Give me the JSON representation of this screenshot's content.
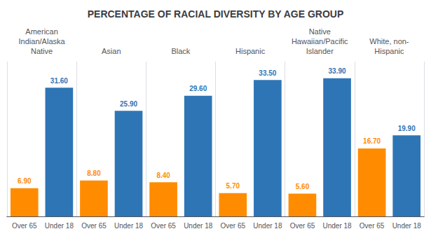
{
  "chart_data": {
    "type": "bar",
    "title": "PERCENTAGE OF RACIAL DIVERSITY BY AGE GROUP",
    "categories": [
      "American\nIndian/Alaska\nNative",
      "Asian",
      "Black",
      "Hispanic",
      "Native\nHawaiian/Pacific\nIslander",
      "White, non-\nHispanic"
    ],
    "series": [
      {
        "name": "Over 65",
        "color": "#FF8C00",
        "values": [
          6.9,
          8.8,
          8.4,
          5.7,
          5.6,
          16.7
        ],
        "value_labels": [
          "6.90",
          "8.80",
          "8.40",
          "5.70",
          "5.60",
          "16.70"
        ]
      },
      {
        "name": "Under 18",
        "color": "#2E75B6",
        "values": [
          31.6,
          25.9,
          29.6,
          33.5,
          33.9,
          19.9
        ],
        "value_labels": [
          "31.60",
          "25.90",
          "29.60",
          "33.50",
          "33.90",
          "19.90"
        ]
      }
    ],
    "ylim": [
      0,
      38
    ],
    "tick_labels": "x",
    "data_labels": true
  }
}
